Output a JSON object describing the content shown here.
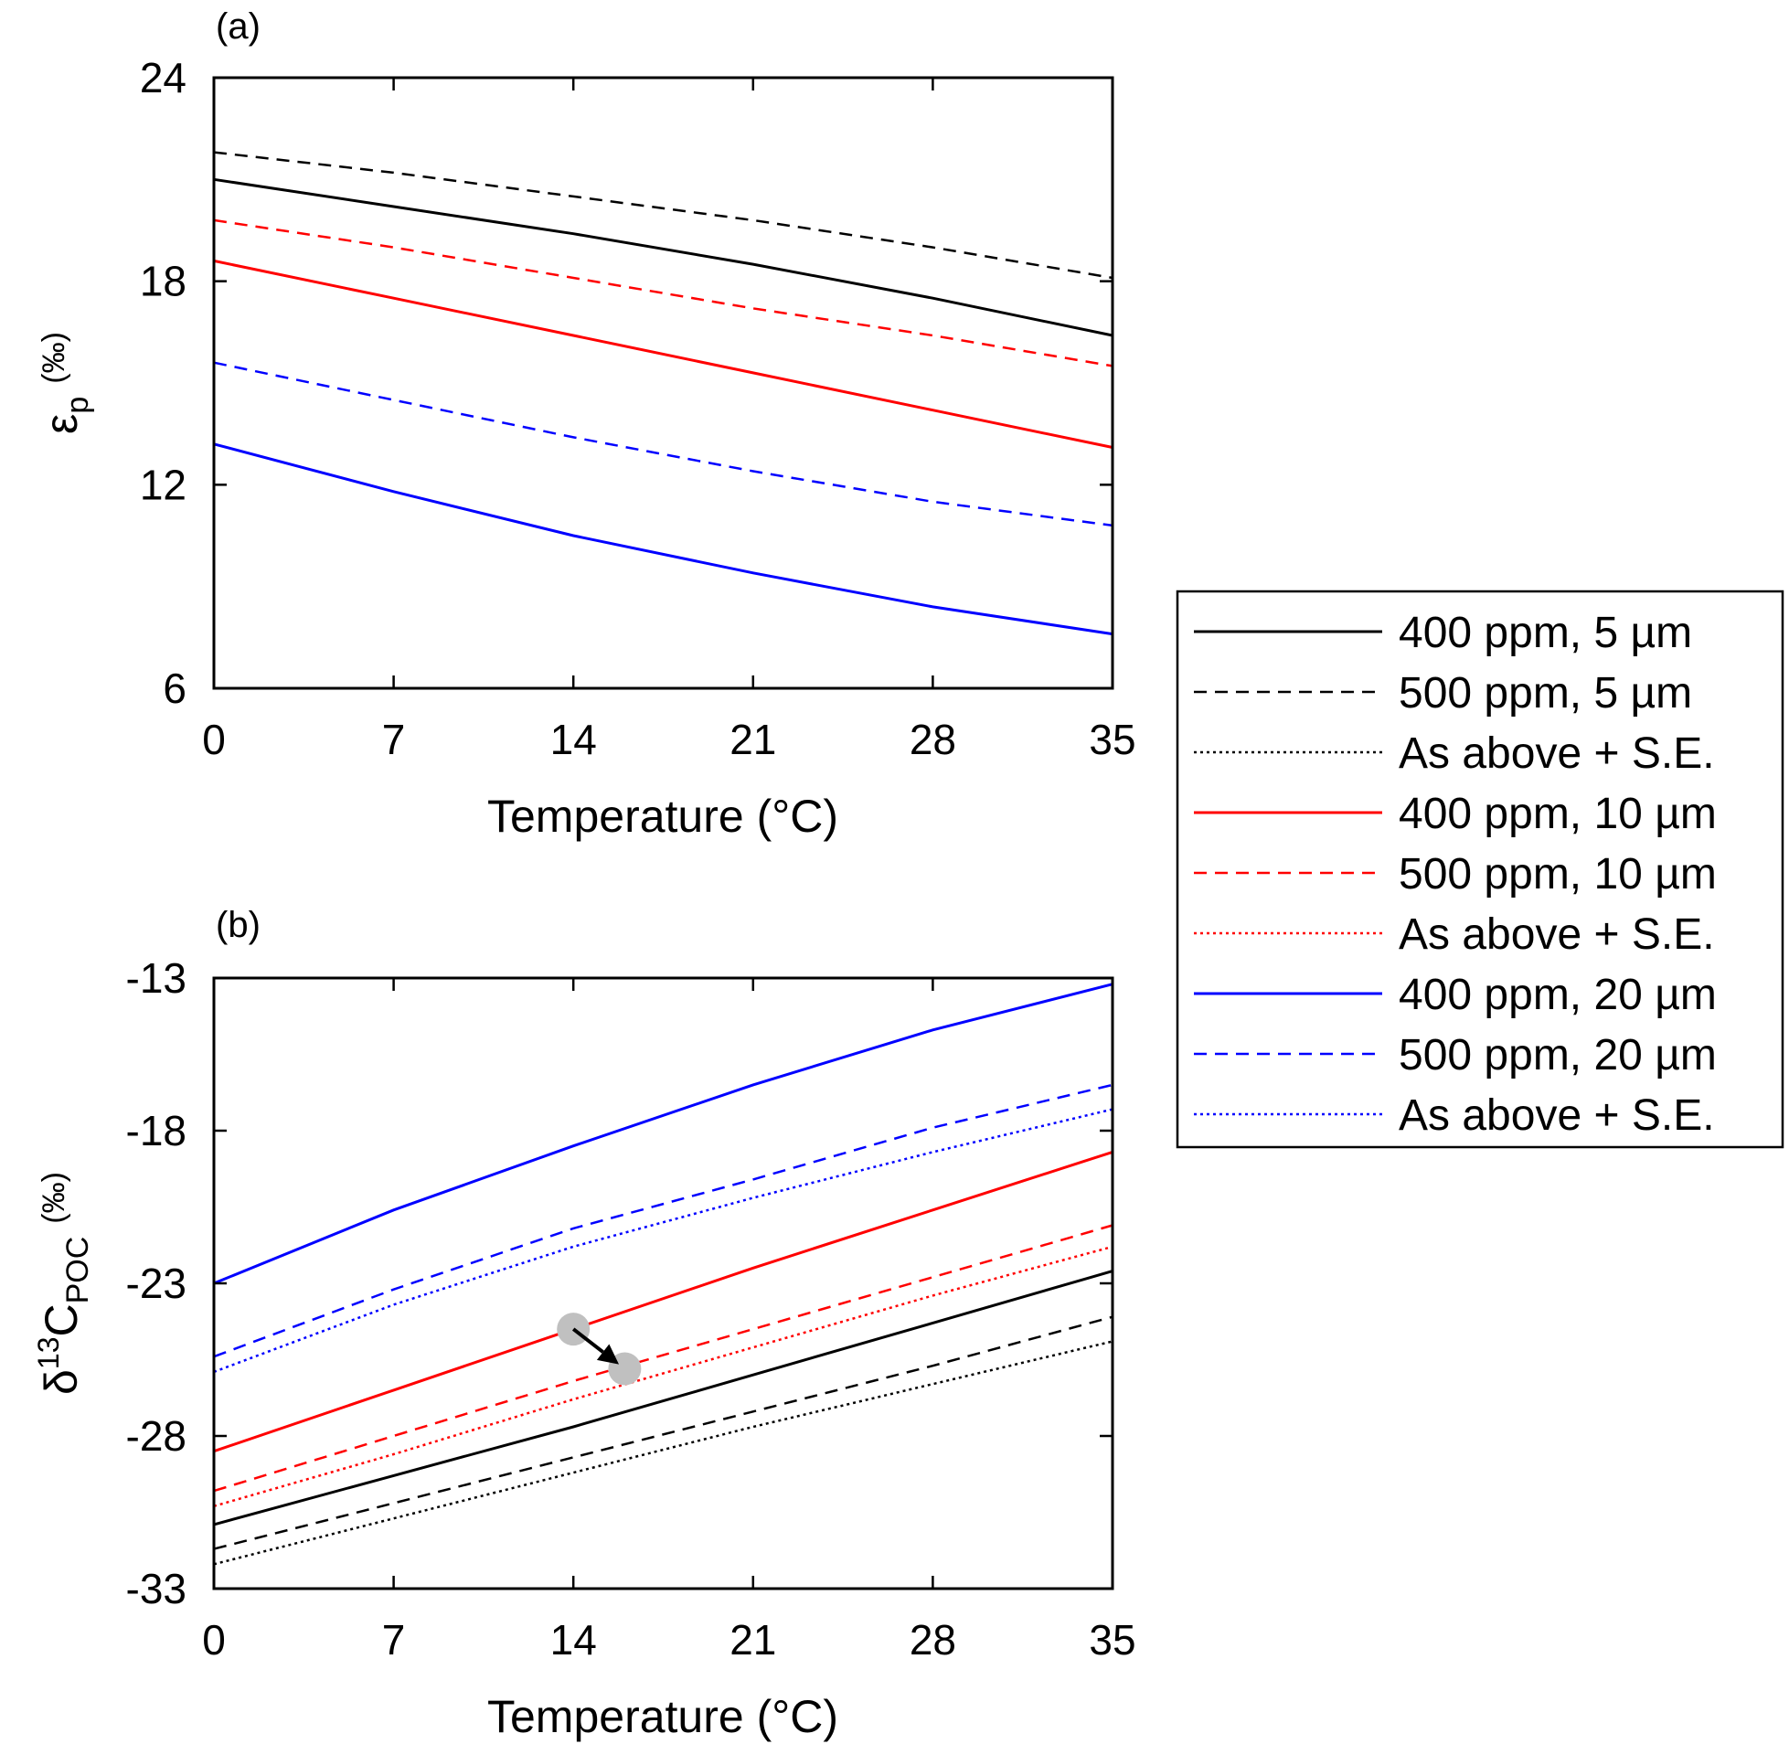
{
  "chart_data": [
    {
      "type": "line",
      "panel_label": "(a)",
      "xlabel": "Temperature (°C)",
      "ylabel": "εp (‰)",
      "ylabel_main": "ε",
      "ylabel_sub": "p",
      "ylabel_unit": "(‰)",
      "xlim": [
        0,
        35
      ],
      "ylim": [
        6,
        24
      ],
      "xticks": [
        0,
        7,
        14,
        21,
        28,
        35
      ],
      "yticks": [
        6,
        12,
        18,
        24
      ],
      "grid": false,
      "series": [
        {
          "name": "400 ppm, 5 µm",
          "color": "#000000",
          "style": "solid",
          "x": [
            0,
            7,
            14,
            21,
            28,
            35
          ],
          "y": [
            21.0,
            20.2,
            19.4,
            18.5,
            17.5,
            16.4
          ]
        },
        {
          "name": "500 ppm, 5 µm",
          "color": "#000000",
          "style": "dashed",
          "x": [
            0,
            7,
            14,
            21,
            28,
            35
          ],
          "y": [
            21.8,
            21.2,
            20.5,
            19.8,
            19.0,
            18.1
          ]
        },
        {
          "name": "400 ppm, 10 µm",
          "color": "#ff0000",
          "style": "solid",
          "x": [
            0,
            7,
            14,
            21,
            28,
            35
          ],
          "y": [
            18.6,
            17.5,
            16.4,
            15.3,
            14.2,
            13.1
          ]
        },
        {
          "name": "500 ppm, 10 µm",
          "color": "#ff0000",
          "style": "dashed",
          "x": [
            0,
            7,
            14,
            21,
            28,
            35
          ],
          "y": [
            19.8,
            19.0,
            18.1,
            17.2,
            16.4,
            15.5
          ]
        },
        {
          "name": "400 ppm, 20 µm",
          "color": "#0000ff",
          "style": "solid",
          "x": [
            0,
            7,
            14,
            21,
            28,
            35
          ],
          "y": [
            13.2,
            11.8,
            10.5,
            9.4,
            8.4,
            7.6
          ]
        },
        {
          "name": "500 ppm, 20 µm",
          "color": "#0000ff",
          "style": "dashed",
          "x": [
            0,
            7,
            14,
            21,
            28,
            35
          ],
          "y": [
            15.6,
            14.5,
            13.4,
            12.4,
            11.5,
            10.8
          ]
        }
      ]
    },
    {
      "type": "line",
      "panel_label": "(b)",
      "xlabel": "Temperature (°C)",
      "ylabel": "δ13CPOC (‰)",
      "ylabel_main": "δ",
      "ylabel_sup": "13",
      "ylabel_main2": "C",
      "ylabel_sub": "POC",
      "ylabel_unit": "(‰)",
      "xlim": [
        0,
        35
      ],
      "ylim": [
        -33,
        -13
      ],
      "xticks": [
        0,
        7,
        14,
        21,
        28,
        35
      ],
      "yticks": [
        -33,
        -28,
        -23,
        -18,
        -13
      ],
      "grid": false,
      "series": [
        {
          "name": "400 ppm, 5 µm",
          "color": "#000000",
          "style": "solid",
          "x": [
            0,
            7,
            14,
            21,
            28,
            35
          ],
          "y": [
            -30.9,
            -29.3,
            -27.7,
            -26.0,
            -24.3,
            -22.6
          ]
        },
        {
          "name": "500 ppm, 5 µm",
          "color": "#000000",
          "style": "dashed",
          "x": [
            0,
            7,
            14,
            21,
            28,
            35
          ],
          "y": [
            -31.7,
            -30.2,
            -28.7,
            -27.2,
            -25.7,
            -24.1
          ]
        },
        {
          "name": "As above + S.E.",
          "color": "#000000",
          "style": "dotted",
          "x": [
            0,
            7,
            14,
            21,
            28,
            35
          ],
          "y": [
            -32.2,
            -30.7,
            -29.2,
            -27.7,
            -26.3,
            -24.9
          ]
        },
        {
          "name": "400 ppm, 10 µm",
          "color": "#ff0000",
          "style": "solid",
          "x": [
            0,
            7,
            14,
            21,
            28,
            35
          ],
          "y": [
            -28.5,
            -26.5,
            -24.5,
            -22.5,
            -20.6,
            -18.7
          ]
        },
        {
          "name": "500 ppm, 10 µm",
          "color": "#ff0000",
          "style": "dashed",
          "x": [
            0,
            7,
            14,
            21,
            28,
            35
          ],
          "y": [
            -29.8,
            -28.0,
            -26.2,
            -24.5,
            -22.8,
            -21.1
          ]
        },
        {
          "name": "As above + S.E.",
          "color": "#ff0000",
          "style": "dotted",
          "x": [
            0,
            7,
            14,
            21,
            28,
            35
          ],
          "y": [
            -30.3,
            -28.6,
            -26.8,
            -25.1,
            -23.4,
            -21.8
          ]
        },
        {
          "name": "400 ppm, 20 µm",
          "color": "#0000ff",
          "style": "solid",
          "x": [
            0,
            7,
            14,
            21,
            28,
            35
          ],
          "y": [
            -23.0,
            -20.6,
            -18.5,
            -16.5,
            -14.7,
            -13.2
          ]
        },
        {
          "name": "500 ppm, 20 µm",
          "color": "#0000ff",
          "style": "dashed",
          "x": [
            0,
            7,
            14,
            21,
            28,
            35
          ],
          "y": [
            -25.4,
            -23.2,
            -21.2,
            -19.6,
            -17.9,
            -16.5
          ]
        },
        {
          "name": "As above + S.E.",
          "color": "#0000ff",
          "style": "dotted",
          "x": [
            0,
            7,
            14,
            21,
            28,
            35
          ],
          "y": [
            -25.9,
            -23.7,
            -21.8,
            -20.2,
            -18.7,
            -17.3
          ]
        }
      ],
      "annotation": {
        "type": "arrow",
        "from": [
          14,
          -24.5
        ],
        "to": [
          16,
          -25.8
        ]
      }
    }
  ],
  "legend": {
    "placement": "right",
    "entries": [
      {
        "label": "400 ppm, 5 µm",
        "color": "#000000",
        "style": "solid"
      },
      {
        "label": "500 ppm, 5 µm",
        "color": "#000000",
        "style": "dashed"
      },
      {
        "label": "As above + S.E.",
        "color": "#000000",
        "style": "dotted"
      },
      {
        "label": "400 ppm, 10 µm",
        "color": "#ff0000",
        "style": "solid"
      },
      {
        "label": "500 ppm, 10 µm",
        "color": "#ff0000",
        "style": "dashed"
      },
      {
        "label": "As above + S.E.",
        "color": "#ff0000",
        "style": "dotted"
      },
      {
        "label": "400 ppm, 20 µm",
        "color": "#0000ff",
        "style": "solid"
      },
      {
        "label": "500 ppm, 20 µm",
        "color": "#0000ff",
        "style": "dashed"
      },
      {
        "label": "As above + S.E.",
        "color": "#0000ff",
        "style": "dotted"
      }
    ]
  }
}
